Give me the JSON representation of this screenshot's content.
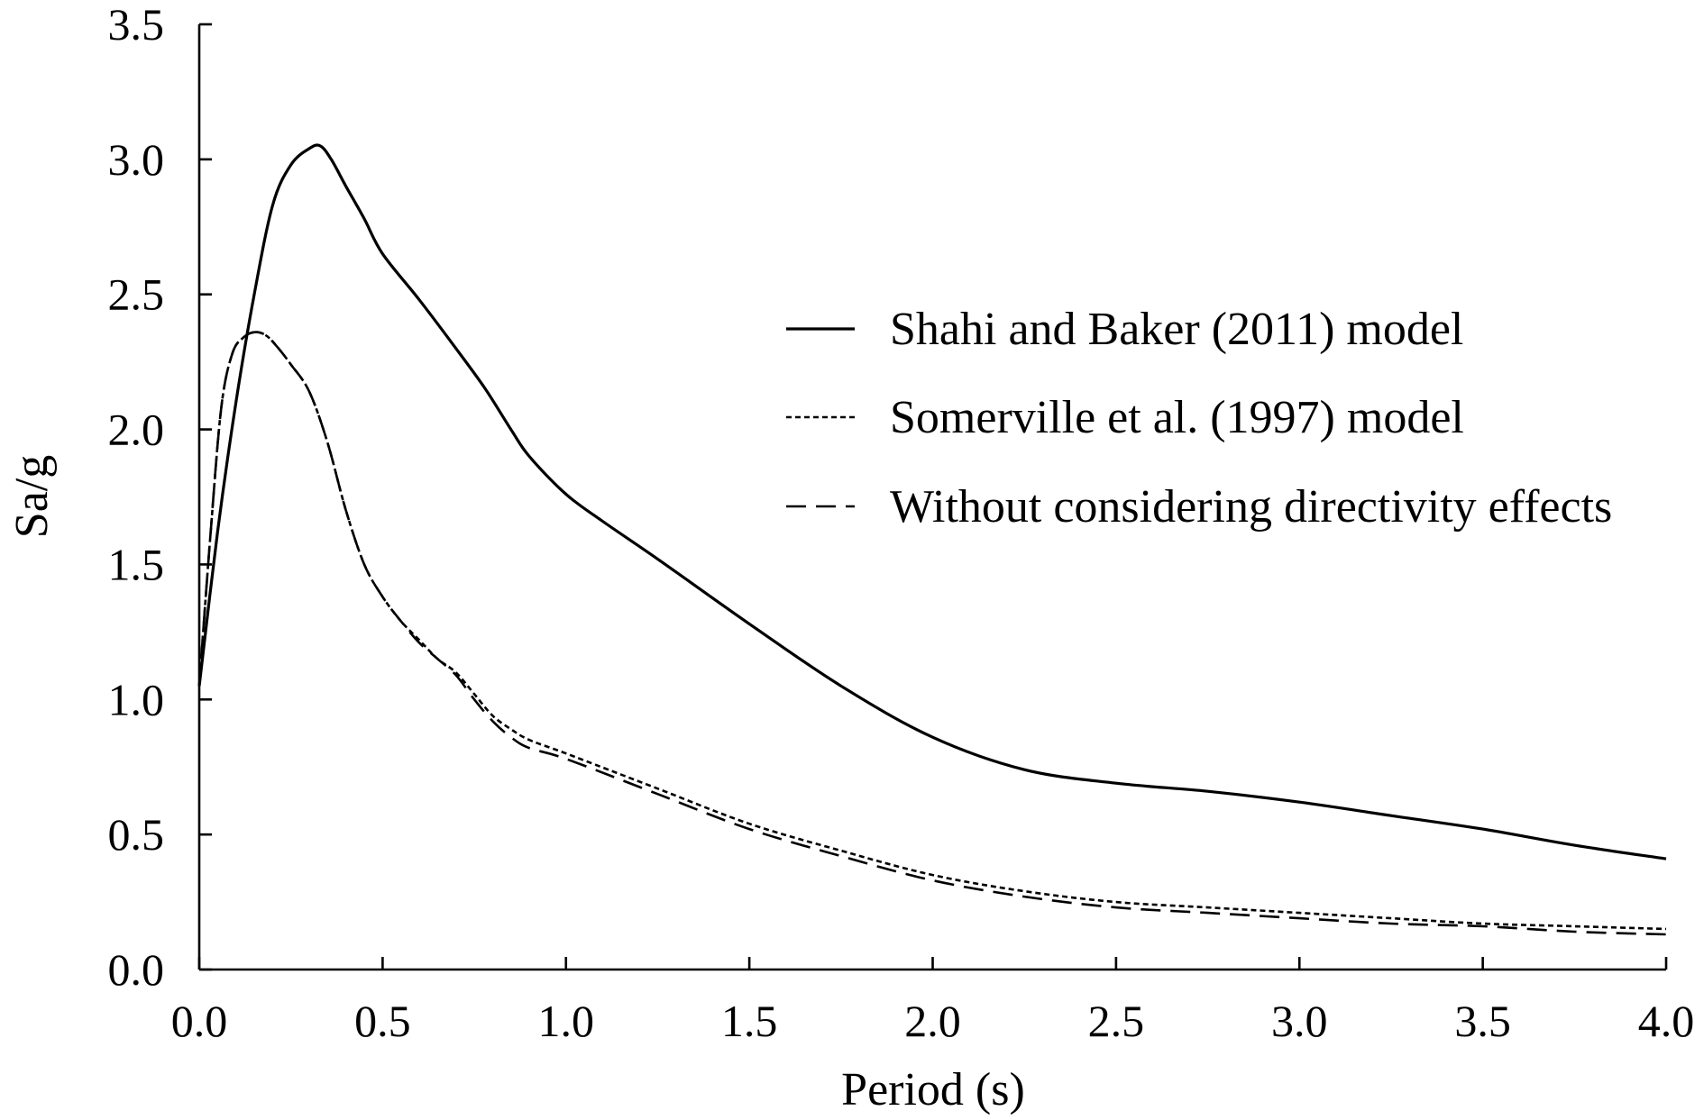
{
  "chart_data": {
    "type": "line",
    "xlabel": "Period (s)",
    "ylabel": "Sa/g",
    "xlim": [
      0,
      4
    ],
    "ylim": [
      0,
      3.5
    ],
    "xticks": [
      "0.0",
      "0.5",
      "1.0",
      "1.5",
      "2.0",
      "2.5",
      "3.0",
      "3.5",
      "4.0"
    ],
    "yticks": [
      "0.0",
      "0.5",
      "1.0",
      "1.5",
      "2.0",
      "2.5",
      "3.0",
      "3.5"
    ],
    "grid": false,
    "legend_position": "right",
    "series": [
      {
        "name": "Shahi and Baker (2011) model",
        "style": "solid",
        "color": "#000000",
        "x": [
          0,
          0.05,
          0.1,
          0.15,
          0.2,
          0.25,
          0.3,
          0.33,
          0.36,
          0.4,
          0.45,
          0.5,
          0.6,
          0.7,
          0.78,
          0.85,
          0.9,
          1.0,
          1.1,
          1.25,
          1.5,
          1.75,
          2.0,
          2.25,
          2.5,
          2.75,
          3.0,
          3.25,
          3.5,
          3.75,
          4.0
        ],
        "y": [
          1.05,
          1.62,
          2.1,
          2.5,
          2.83,
          2.98,
          3.04,
          3.05,
          3.0,
          2.9,
          2.78,
          2.65,
          2.48,
          2.3,
          2.15,
          2.0,
          1.9,
          1.76,
          1.66,
          1.52,
          1.28,
          1.05,
          0.86,
          0.74,
          0.69,
          0.66,
          0.62,
          0.57,
          0.52,
          0.46,
          0.41
        ]
      },
      {
        "name": "Somerville et al. (1997) model",
        "style": "dotted",
        "color": "#000000",
        "x": [
          0,
          0.03,
          0.06,
          0.09,
          0.12,
          0.15,
          0.18,
          0.21,
          0.25,
          0.3,
          0.35,
          0.4,
          0.45,
          0.5,
          0.55,
          0.6,
          0.65,
          0.7,
          0.75,
          0.8,
          0.85,
          0.9,
          1.0,
          1.25,
          1.5,
          1.75,
          2.0,
          2.25,
          2.5,
          2.75,
          3.0,
          3.25,
          3.5,
          3.75,
          4.0
        ],
        "y": [
          1.05,
          1.6,
          2.08,
          2.28,
          2.34,
          2.36,
          2.35,
          2.31,
          2.24,
          2.14,
          1.95,
          1.7,
          1.5,
          1.38,
          1.29,
          1.22,
          1.15,
          1.1,
          1.02,
          0.94,
          0.89,
          0.85,
          0.8,
          0.67,
          0.54,
          0.44,
          0.35,
          0.29,
          0.25,
          0.23,
          0.21,
          0.19,
          0.17,
          0.16,
          0.15
        ]
      },
      {
        "name": "Without considering directivity effects",
        "style": "dashed",
        "color": "#000000",
        "x": [
          0,
          0.03,
          0.06,
          0.09,
          0.12,
          0.15,
          0.18,
          0.21,
          0.25,
          0.3,
          0.35,
          0.4,
          0.45,
          0.5,
          0.55,
          0.6,
          0.65,
          0.7,
          0.75,
          0.8,
          0.85,
          0.9,
          1.0,
          1.25,
          1.5,
          1.75,
          2.0,
          2.25,
          2.5,
          2.75,
          3.0,
          3.25,
          3.5,
          3.75,
          4.0
        ],
        "y": [
          1.05,
          1.6,
          2.08,
          2.28,
          2.34,
          2.36,
          2.35,
          2.31,
          2.24,
          2.14,
          1.95,
          1.7,
          1.5,
          1.38,
          1.29,
          1.21,
          1.15,
          1.09,
          1.0,
          0.92,
          0.86,
          0.82,
          0.78,
          0.65,
          0.52,
          0.42,
          0.33,
          0.27,
          0.23,
          0.21,
          0.19,
          0.17,
          0.16,
          0.14,
          0.13
        ]
      }
    ]
  }
}
